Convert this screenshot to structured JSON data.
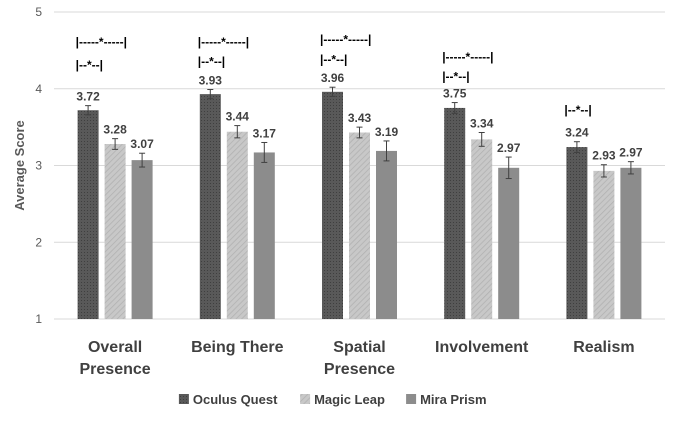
{
  "chart_data": {
    "type": "bar",
    "ylabel": "Average Score",
    "ylim": [
      1,
      5
    ],
    "yticks": [
      "1",
      "2",
      "3",
      "4",
      "5"
    ],
    "grid": true,
    "legend_position": "bottom",
    "categories": [
      [
        "Overall",
        "Presence"
      ],
      [
        "Being There"
      ],
      [
        "Spatial",
        "Presence"
      ],
      [
        "Involvement"
      ],
      [
        "Realism"
      ]
    ],
    "series": [
      {
        "name": "Oculus Quest",
        "color": "#595959",
        "hatch": "dots-dark",
        "values": [
          3.72,
          3.93,
          3.96,
          3.75,
          3.24
        ],
        "labels": [
          "3.72",
          "3.93",
          "3.96",
          "3.75",
          "3.24"
        ],
        "errors": [
          0.06,
          0.06,
          0.06,
          0.07,
          0.07
        ]
      },
      {
        "name": "Magic Leap",
        "color": "#bfbfbf",
        "hatch": "lines-light",
        "values": [
          3.28,
          3.44,
          3.43,
          3.34,
          2.93
        ],
        "labels": [
          "3.28",
          "3.44",
          "3.43",
          "3.34",
          "2.93"
        ],
        "errors": [
          0.07,
          0.08,
          0.07,
          0.09,
          0.08
        ]
      },
      {
        "name": "Mira Prism",
        "color": "#8c8c8c",
        "hatch": "none",
        "values": [
          3.07,
          3.17,
          3.19,
          2.97,
          2.97
        ],
        "labels": [
          "3.07",
          "3.17",
          "3.19",
          "2.97",
          "2.97"
        ],
        "errors": [
          0.09,
          0.13,
          0.13,
          0.14,
          0.08
        ]
      }
    ],
    "significance": [
      {
        "category": 0,
        "text": "|-----*-----|",
        "level": 4.56
      },
      {
        "category": 0,
        "text": "|--*--|",
        "level": 4.26
      },
      {
        "category": 1,
        "text": "|-----*-----|",
        "level": 4.56
      },
      {
        "category": 1,
        "text": "|--*--|",
        "level": 4.3
      },
      {
        "category": 2,
        "text": "|-----*-----|",
        "level": 4.59
      },
      {
        "category": 2,
        "text": "|--*--|",
        "level": 4.33
      },
      {
        "category": 3,
        "text": "|-----*-----|",
        "level": 4.36
      },
      {
        "category": 3,
        "text": "|--*--|",
        "level": 4.11
      },
      {
        "category": 4,
        "text": "|--*--|",
        "level": 3.67
      }
    ]
  }
}
